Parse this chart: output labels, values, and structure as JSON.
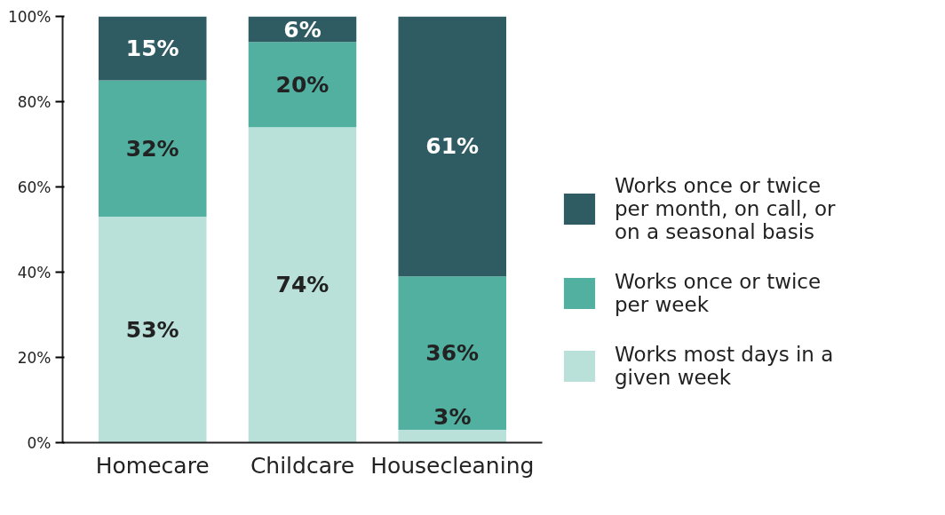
{
  "chart_data": {
    "type": "bar",
    "stacked": true,
    "categories": [
      "Homecare",
      "Childcare",
      "Housecleaning"
    ],
    "series": [
      {
        "name": "Works most days in a given week",
        "color": "#b9e0d9",
        "values": [
          53,
          74,
          3
        ],
        "value_labels": [
          "53%",
          "74%",
          "3%"
        ]
      },
      {
        "name": "Works once or twice per week",
        "color": "#52b0a0",
        "values": [
          32,
          20,
          36
        ],
        "value_labels": [
          "32%",
          "20%",
          "36%"
        ]
      },
      {
        "name": "Works once or twice per month, on call, or on a seasonal basis",
        "color": "#2f5b62",
        "values": [
          15,
          6,
          61
        ],
        "value_labels": [
          "15%",
          "6%",
          "61%"
        ]
      }
    ],
    "ylim": [
      0,
      100
    ],
    "yticks": [
      {
        "value": 0,
        "label": "0%"
      },
      {
        "value": 20,
        "label": "20%"
      },
      {
        "value": 40,
        "label": "40%"
      },
      {
        "value": 60,
        "label": "60%"
      },
      {
        "value": 80,
        "label": "80%"
      },
      {
        "value": 100,
        "label": "100%"
      }
    ],
    "grid": false,
    "legend": "right"
  }
}
